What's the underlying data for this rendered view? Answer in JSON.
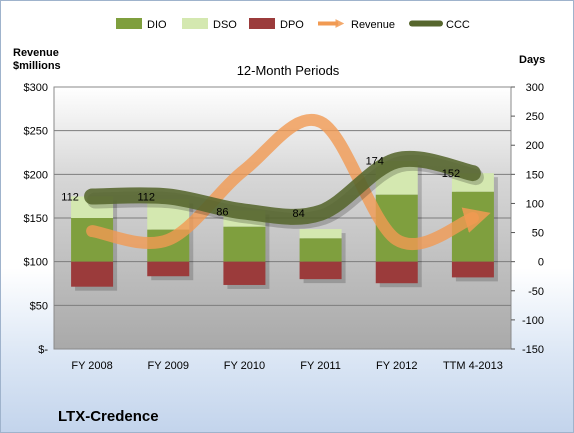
{
  "chart_data": {
    "type": "bar",
    "title": "12-Month Periods",
    "ylabel_left": "Revenue $millions",
    "ylabel_right": "Days",
    "company": "LTX-Credence",
    "categories": [
      "FY 2008",
      "FY 2009",
      "FY 2010",
      "FY 2011",
      "FY 2012",
      "TTM 4-2013"
    ],
    "left_axis": {
      "ticks": [
        "$-",
        "$50",
        "$100",
        "$150",
        "$200",
        "$250",
        "$300"
      ],
      "ylim": [
        0,
        300
      ]
    },
    "right_axis": {
      "ticks": [
        "-150",
        "-100",
        "-50",
        "0",
        "50",
        "100",
        "150",
        "200",
        "250",
        "300"
      ],
      "ylim": [
        -150,
        300
      ]
    },
    "legend": {
      "placement": "top",
      "entries": [
        "DIO",
        "DSO",
        "DPO",
        "Revenue",
        "CCC"
      ]
    },
    "grid": true,
    "series": [
      {
        "name": "DIO",
        "axis": "right",
        "kind": "bar",
        "values": [
          75,
          55,
          60,
          40,
          115,
          120
        ]
      },
      {
        "name": "DSO",
        "axis": "right",
        "kind": "bar",
        "values": [
          37,
          52,
          28,
          16,
          58,
          32
        ]
      },
      {
        "name": "DPO",
        "axis": "right",
        "kind": "bar",
        "values": [
          -43,
          -25,
          -40,
          -30,
          -37,
          -27
        ]
      },
      {
        "name": "Revenue",
        "axis": "left",
        "kind": "line",
        "values": [
          135,
          125,
          205,
          260,
          125,
          150
        ]
      },
      {
        "name": "CCC",
        "axis": "right",
        "kind": "line",
        "values": [
          112,
          112,
          86,
          84,
          174,
          152
        ]
      }
    ],
    "data_labels": [
      "112",
      "112",
      "86",
      "84",
      "174",
      "152"
    ],
    "colors": {
      "DIO": "#7f9f3e",
      "DSO": "#d4e8b0",
      "DPO": "#9b3b3b",
      "Revenue": "#f19a52",
      "CCC": "#56662d"
    }
  }
}
